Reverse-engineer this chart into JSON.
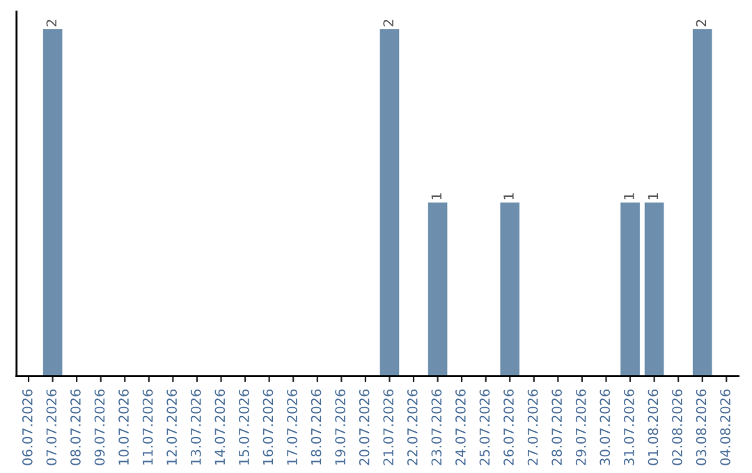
{
  "chart_data": {
    "type": "bar",
    "categories": [
      "06.07.2026",
      "07.07.2026",
      "08.07.2026",
      "09.07.2026",
      "10.07.2026",
      "11.07.2026",
      "12.07.2026",
      "13.07.2026",
      "14.07.2026",
      "15.07.2026",
      "16.07.2026",
      "17.07.2026",
      "18.07.2026",
      "19.07.2026",
      "20.07.2026",
      "21.07.2026",
      "22.07.2026",
      "23.07.2026",
      "24.07.2026",
      "25.07.2026",
      "26.07.2026",
      "27.07.2026",
      "28.07.2026",
      "29.07.2026",
      "30.07.2026",
      "31.07.2026",
      "01.08.2026",
      "02.08.2026",
      "03.08.2026",
      "04.08.2026"
    ],
    "values": [
      0,
      2,
      0,
      0,
      0,
      0,
      0,
      0,
      0,
      0,
      0,
      0,
      0,
      0,
      0,
      2,
      0,
      1,
      0,
      0,
      1,
      0,
      0,
      0,
      0,
      1,
      1,
      0,
      2,
      0
    ],
    "value_labels": [
      null,
      "2",
      null,
      null,
      null,
      null,
      null,
      null,
      null,
      null,
      null,
      null,
      null,
      null,
      null,
      "2",
      null,
      "1",
      null,
      null,
      "1",
      null,
      null,
      null,
      null,
      "1",
      "1",
      null,
      "2",
      null
    ],
    "color": "#6d8fad",
    "tick_labels": "x",
    "grid": false,
    "legend": false
  }
}
